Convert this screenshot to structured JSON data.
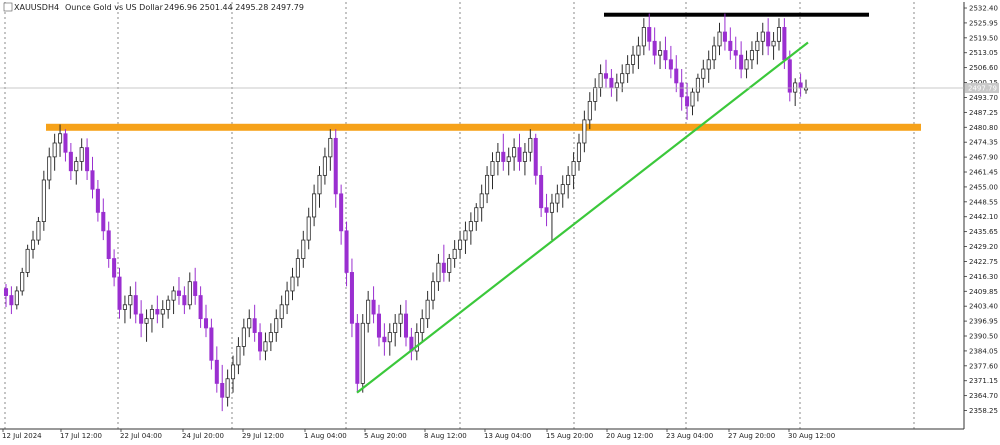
{
  "header": {
    "symbol": "XAUUSD",
    "timeframe": "H4",
    "description": "Ounce Gold vs US Dollar",
    "ohlc": "2496.96 2501.44 2495.28 2497.79"
  },
  "current_price_label": "2497.79",
  "chart_data": {
    "type": "candlestick",
    "symbol": "XAUUSD",
    "timeframe": "H4",
    "ylim": [
      2352.0,
      2535.0
    ],
    "y_ticks": [
      "2532.40",
      "2525.95",
      "2519.50",
      "2513.05",
      "2506.60",
      "2500.15",
      "2493.70",
      "2487.25",
      "2480.80",
      "2474.35",
      "2467.90",
      "2461.45",
      "2455.00",
      "2448.55",
      "2442.10",
      "2435.65",
      "2429.20",
      "2422.75",
      "2416.30",
      "2409.85",
      "2403.40",
      "2396.95",
      "2390.50",
      "2384.05",
      "2377.60",
      "2371.15",
      "2364.70",
      "2358.25"
    ],
    "x_ticks": [
      "12 Jul 2024",
      "17 Jul 12:00",
      "22 Jul 04:00",
      "24 Jul 20:00",
      "29 Jul 12:00",
      "1 Aug 04:00",
      "5 Aug 20:00",
      "8 Aug 12:00",
      "13 Aug 04:00",
      "15 Aug 20:00",
      "20 Aug 12:00",
      "23 Aug 04:00",
      "27 Aug 20:00",
      "30 Aug 12:00"
    ],
    "candles": [
      [
        2411,
        2413,
        2403,
        2408
      ],
      [
        2408,
        2412,
        2400,
        2404
      ],
      [
        2404,
        2412,
        2402,
        2410
      ],
      [
        2410,
        2420,
        2408,
        2418
      ],
      [
        2418,
        2430,
        2416,
        2428
      ],
      [
        2428,
        2436,
        2424,
        2432
      ],
      [
        2432,
        2442,
        2430,
        2440
      ],
      [
        2440,
        2462,
        2436,
        2458
      ],
      [
        2458,
        2472,
        2454,
        2468
      ],
      [
        2468,
        2478,
        2462,
        2474
      ],
      [
        2474,
        2482,
        2468,
        2478
      ],
      [
        2478,
        2480,
        2466,
        2470
      ],
      [
        2470,
        2474,
        2458,
        2462
      ],
      [
        2462,
        2468,
        2456,
        2466
      ],
      [
        2466,
        2476,
        2462,
        2472
      ],
      [
        2472,
        2476,
        2458,
        2462
      ],
      [
        2462,
        2468,
        2450,
        2454
      ],
      [
        2454,
        2458,
        2440,
        2444
      ],
      [
        2444,
        2450,
        2432,
        2436
      ],
      [
        2436,
        2440,
        2420,
        2424
      ],
      [
        2424,
        2428,
        2412,
        2416
      ],
      [
        2416,
        2420,
        2398,
        2402
      ],
      [
        2402,
        2408,
        2396,
        2404
      ],
      [
        2404,
        2412,
        2398,
        2408
      ],
      [
        2408,
        2414,
        2396,
        2400
      ],
      [
        2400,
        2406,
        2390,
        2396
      ],
      [
        2396,
        2402,
        2388,
        2398
      ],
      [
        2398,
        2404,
        2392,
        2402
      ],
      [
        2402,
        2408,
        2396,
        2400
      ],
      [
        2400,
        2406,
        2394,
        2402
      ],
      [
        2402,
        2408,
        2398,
        2406
      ],
      [
        2406,
        2412,
        2400,
        2410
      ],
      [
        2410,
        2416,
        2404,
        2408
      ],
      [
        2408,
        2412,
        2400,
        2404
      ],
      [
        2404,
        2418,
        2402,
        2414
      ],
      [
        2414,
        2420,
        2404,
        2408
      ],
      [
        2408,
        2412,
        2394,
        2398
      ],
      [
        2398,
        2404,
        2390,
        2394
      ],
      [
        2394,
        2398,
        2376,
        2380
      ],
      [
        2380,
        2386,
        2366,
        2370
      ],
      [
        2370,
        2378,
        2358,
        2364
      ],
      [
        2364,
        2376,
        2360,
        2372
      ],
      [
        2372,
        2382,
        2366,
        2378
      ],
      [
        2378,
        2390,
        2374,
        2386
      ],
      [
        2386,
        2398,
        2382,
        2394
      ],
      [
        2394,
        2402,
        2390,
        2398
      ],
      [
        2398,
        2404,
        2388,
        2392
      ],
      [
        2392,
        2396,
        2380,
        2384
      ],
      [
        2384,
        2392,
        2380,
        2388
      ],
      [
        2388,
        2396,
        2384,
        2392
      ],
      [
        2392,
        2402,
        2388,
        2398
      ],
      [
        2398,
        2408,
        2394,
        2404
      ],
      [
        2404,
        2414,
        2400,
        2410
      ],
      [
        2410,
        2420,
        2406,
        2416
      ],
      [
        2416,
        2428,
        2412,
        2424
      ],
      [
        2424,
        2436,
        2420,
        2432
      ],
      [
        2432,
        2446,
        2428,
        2442
      ],
      [
        2442,
        2456,
        2438,
        2452
      ],
      [
        2452,
        2464,
        2446,
        2460
      ],
      [
        2460,
        2472,
        2456,
        2468
      ],
      [
        2468,
        2480,
        2462,
        2476
      ],
      [
        2476,
        2480,
        2446,
        2452
      ],
      [
        2452,
        2456,
        2430,
        2436
      ],
      [
        2436,
        2440,
        2412,
        2418
      ],
      [
        2418,
        2424,
        2390,
        2396
      ],
      [
        2396,
        2400,
        2366,
        2370
      ],
      [
        2370,
        2400,
        2366,
        2396
      ],
      [
        2396,
        2410,
        2392,
        2406
      ],
      [
        2406,
        2412,
        2396,
        2400
      ],
      [
        2400,
        2404,
        2386,
        2390
      ],
      [
        2390,
        2396,
        2382,
        2388
      ],
      [
        2388,
        2396,
        2382,
        2392
      ],
      [
        2392,
        2400,
        2386,
        2396
      ],
      [
        2396,
        2404,
        2390,
        2400
      ],
      [
        2400,
        2406,
        2386,
        2390
      ],
      [
        2390,
        2394,
        2380,
        2384
      ],
      [
        2384,
        2396,
        2380,
        2392
      ],
      [
        2392,
        2402,
        2388,
        2398
      ],
      [
        2398,
        2410,
        2394,
        2406
      ],
      [
        2406,
        2418,
        2402,
        2414
      ],
      [
        2414,
        2426,
        2410,
        2422
      ],
      [
        2422,
        2430,
        2414,
        2418
      ],
      [
        2418,
        2426,
        2414,
        2424
      ],
      [
        2424,
        2432,
        2420,
        2428
      ],
      [
        2428,
        2436,
        2424,
        2432
      ],
      [
        2432,
        2440,
        2426,
        2436
      ],
      [
        2436,
        2444,
        2430,
        2440
      ],
      [
        2440,
        2448,
        2436,
        2446
      ],
      [
        2446,
        2456,
        2440,
        2452
      ],
      [
        2452,
        2464,
        2448,
        2460
      ],
      [
        2460,
        2470,
        2454,
        2466
      ],
      [
        2466,
        2474,
        2460,
        2470
      ],
      [
        2470,
        2478,
        2462,
        2466
      ],
      [
        2466,
        2472,
        2460,
        2468
      ],
      [
        2468,
        2476,
        2462,
        2472
      ],
      [
        2472,
        2478,
        2462,
        2466
      ],
      [
        2466,
        2474,
        2460,
        2470
      ],
      [
        2470,
        2480,
        2466,
        2476
      ],
      [
        2476,
        2478,
        2456,
        2460
      ],
      [
        2460,
        2464,
        2442,
        2446
      ],
      [
        2446,
        2452,
        2438,
        2444
      ],
      [
        2444,
        2452,
        2432,
        2448
      ],
      [
        2448,
        2456,
        2444,
        2452
      ],
      [
        2452,
        2460,
        2446,
        2456
      ],
      [
        2456,
        2464,
        2450,
        2460
      ],
      [
        2460,
        2470,
        2454,
        2466
      ],
      [
        2466,
        2478,
        2462,
        2474
      ],
      [
        2474,
        2488,
        2470,
        2484
      ],
      [
        2484,
        2496,
        2480,
        2492
      ],
      [
        2492,
        2502,
        2488,
        2498
      ],
      [
        2498,
        2508,
        2494,
        2504
      ],
      [
        2504,
        2510,
        2498,
        2502
      ],
      [
        2502,
        2506,
        2494,
        2498
      ],
      [
        2498,
        2504,
        2492,
        2500
      ],
      [
        2500,
        2508,
        2496,
        2504
      ],
      [
        2504,
        2512,
        2500,
        2508
      ],
      [
        2508,
        2516,
        2504,
        2512
      ],
      [
        2512,
        2520,
        2506,
        2516
      ],
      [
        2516,
        2528,
        2512,
        2524
      ],
      [
        2524,
        2530,
        2514,
        2518
      ],
      [
        2518,
        2524,
        2508,
        2512
      ],
      [
        2512,
        2518,
        2506,
        2514
      ],
      [
        2514,
        2520,
        2506,
        2510
      ],
      [
        2510,
        2516,
        2502,
        2506
      ],
      [
        2506,
        2512,
        2496,
        2500
      ],
      [
        2500,
        2506,
        2488,
        2494
      ],
      [
        2494,
        2500,
        2484,
        2490
      ],
      [
        2490,
        2498,
        2486,
        2496
      ],
      [
        2496,
        2504,
        2492,
        2502
      ],
      [
        2502,
        2510,
        2498,
        2506
      ],
      [
        2506,
        2514,
        2500,
        2510
      ],
      [
        2510,
        2520,
        2506,
        2516
      ],
      [
        2516,
        2526,
        2512,
        2522
      ],
      [
        2522,
        2530,
        2514,
        2518
      ],
      [
        2518,
        2524,
        2510,
        2514
      ],
      [
        2514,
        2520,
        2506,
        2512
      ],
      [
        2512,
        2518,
        2502,
        2506
      ],
      [
        2506,
        2514,
        2502,
        2510
      ],
      [
        2510,
        2518,
        2506,
        2514
      ],
      [
        2514,
        2522,
        2508,
        2518
      ],
      [
        2518,
        2526,
        2512,
        2522
      ],
      [
        2522,
        2528,
        2512,
        2516
      ],
      [
        2516,
        2522,
        2510,
        2518
      ],
      [
        2518,
        2528,
        2514,
        2524
      ],
      [
        2524,
        2528,
        2506,
        2510
      ],
      [
        2510,
        2514,
        2492,
        2496
      ],
      [
        2496,
        2502,
        2490,
        2500
      ],
      [
        2500,
        2504,
        2494,
        2498
      ],
      [
        2496.96,
        2501.44,
        2495.28,
        2497.79
      ]
    ],
    "support_level": 2480.8,
    "resistance_level": 2529.5,
    "colors": {
      "bull": "#ffffff",
      "bear": "#9a2fd0",
      "outline": "#2b2b2b",
      "support_band": "#f6a21a",
      "resistance_band": "#000000",
      "trendline": "#3bc83b",
      "grid": "#5a5a5a"
    }
  }
}
